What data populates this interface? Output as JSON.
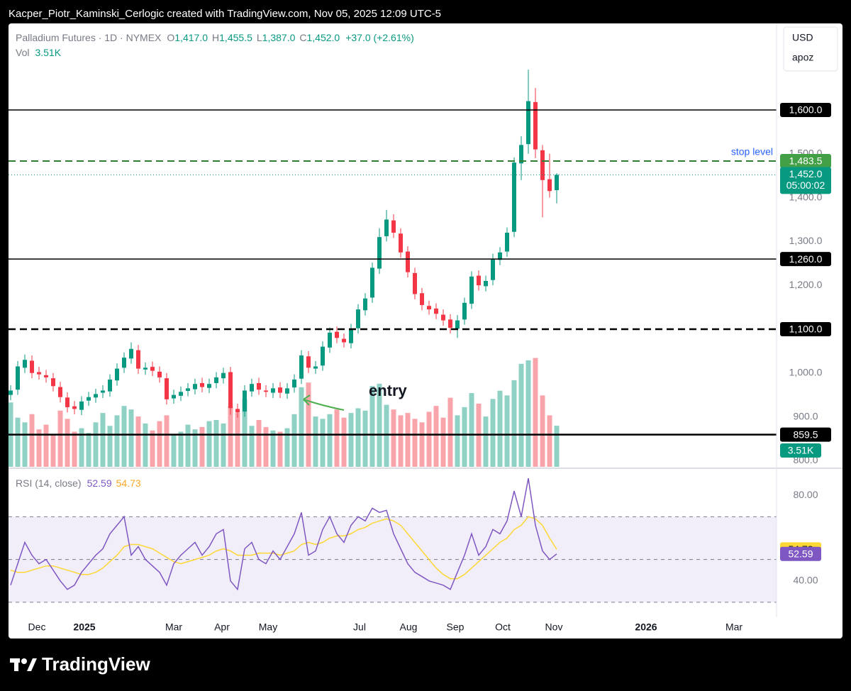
{
  "header": {
    "text": "Kacper_Piotr_Kaminski_Cerlogic created with TradingView.com, Nov 05, 2025 12:09 UTC-5"
  },
  "footer": {
    "logo": "TradingView"
  },
  "chart_data": {
    "type": "candlestick",
    "title": "Palladium Futures · 1D · NYMEX",
    "ohlc_legend": {
      "letters": [
        "O",
        "H",
        "L",
        "C"
      ],
      "values": [
        "1,417.0",
        "1,455.5",
        "1,387.0",
        "1,452.0"
      ],
      "change": "+37.0 (+2.61%)"
    },
    "currency": "USD",
    "scale_mode": "apoz",
    "up_color": "#089981",
    "down_color": "#f23645",
    "grid": false,
    "xlim": [
      -0.3,
      108
    ],
    "xticks": [
      {
        "value": 3.7,
        "label": "Dec"
      },
      {
        "value": 10.4,
        "label": "2025"
      },
      {
        "value": 23,
        "label": "Mar"
      },
      {
        "value": 29.8,
        "label": "Apr"
      },
      {
        "value": 36.3,
        "label": "May"
      },
      {
        "value": 49.2,
        "label": "Jul"
      },
      {
        "value": 56.1,
        "label": "Aug"
      },
      {
        "value": 62.7,
        "label": "Sep"
      },
      {
        "value": 69.4,
        "label": "Oct"
      },
      {
        "value": 76.6,
        "label": "Nov"
      },
      {
        "value": 89.6,
        "label": "2026"
      },
      {
        "value": 102,
        "label": "Mar"
      }
    ],
    "ylim": [
      786,
      1786
    ],
    "yticks": [
      {
        "value": 800,
        "label": "800.0"
      },
      {
        "value": 900,
        "label": "900.0"
      },
      {
        "value": 1000,
        "label": "1,000.0"
      },
      {
        "value": 1200,
        "label": "1,200.0"
      },
      {
        "value": 1300,
        "label": "1,300.0"
      },
      {
        "value": 1400,
        "label": "1,400.0"
      },
      {
        "value": 1500,
        "label": "1,500.0"
      }
    ],
    "open": [
      950,
      962,
      1012,
      1028,
      1002,
      995,
      988,
      968,
      944,
      924,
      916,
      937,
      944,
      955,
      958,
      983,
      1012,
      1033,
      1052,
      1008,
      1014,
      1003,
      988,
      942,
      948,
      959,
      963,
      977,
      966,
      977,
      988,
      1002,
      918,
      912,
      958,
      977,
      960,
      955,
      967,
      953,
      967,
      987,
      1038,
      1010,
      1017,
      1058,
      1094,
      1078,
      1068,
      1102,
      1143,
      1172,
      1238,
      1312,
      1348,
      1318,
      1277,
      1228,
      1182,
      1153,
      1147,
      1133,
      1122,
      1101,
      1122,
      1158,
      1222,
      1198,
      1212,
      1258,
      1277,
      1322,
      1478,
      1522,
      1618,
      1508,
      1442,
      1417
    ],
    "high": [
      972,
      1027,
      1042,
      1040,
      1014,
      1007,
      1000,
      980,
      956,
      936,
      947,
      957,
      964,
      972,
      997,
      1022,
      1047,
      1070,
      1064,
      1024,
      1026,
      1015,
      1000,
      962,
      969,
      977,
      987,
      989,
      987,
      1002,
      1012,
      1014,
      930,
      972,
      987,
      989,
      972,
      977,
      979,
      977,
      997,
      1052,
      1050,
      1027,
      1072,
      1104,
      1106,
      1090,
      1112,
      1157,
      1182,
      1252,
      1330,
      1372,
      1362,
      1330,
      1289,
      1240,
      1194,
      1165,
      1159,
      1145,
      1134,
      1132,
      1172,
      1232,
      1234,
      1222,
      1272,
      1287,
      1332,
      1492,
      1540,
      1692,
      1650,
      1520,
      1500,
      1455.5
    ],
    "low": [
      938,
      950,
      1000,
      988,
      985,
      978,
      958,
      933,
      910,
      906,
      904,
      925,
      932,
      943,
      946,
      971,
      1000,
      1021,
      998,
      996,
      993,
      978,
      928,
      930,
      936,
      947,
      951,
      956,
      954,
      965,
      976,
      905,
      898,
      900,
      946,
      950,
      945,
      943,
      943,
      941,
      955,
      975,
      1000,
      998,
      1005,
      1046,
      1068,
      1058,
      1056,
      1090,
      1131,
      1160,
      1226,
      1300,
      1308,
      1263,
      1218,
      1168,
      1143,
      1133,
      1123,
      1108,
      1090,
      1080,
      1110,
      1146,
      1188,
      1186,
      1200,
      1246,
      1265,
      1310,
      1440,
      1500,
      1490,
      1355,
      1400,
      1387
    ],
    "close": [
      960,
      1015,
      1030,
      1000,
      997,
      990,
      970,
      945,
      922,
      918,
      935,
      945,
      952,
      960,
      985,
      1010,
      1035,
      1055,
      1010,
      1012,
      1005,
      990,
      940,
      950,
      957,
      965,
      975,
      968,
      975,
      990,
      1000,
      920,
      910,
      960,
      975,
      962,
      957,
      965,
      955,
      965,
      985,
      1040,
      1012,
      1015,
      1060,
      1092,
      1080,
      1070,
      1100,
      1145,
      1170,
      1240,
      1310,
      1350,
      1320,
      1275,
      1230,
      1180,
      1155,
      1145,
      1135,
      1120,
      1103,
      1120,
      1160,
      1220,
      1200,
      1210,
      1260,
      1275,
      1320,
      1480,
      1520,
      1620,
      1510,
      1440,
      1415,
      1452
    ],
    "levels": [
      {
        "value": 1600,
        "label": "1,600.0",
        "style": "solid",
        "color": "#000000"
      },
      {
        "value": 1483.5,
        "label": "1,483.5",
        "style": "dashed",
        "color": "#2e7d32",
        "box_color": "#43a047",
        "annotation": "stop level",
        "annotation_color": "#2962ff"
      },
      {
        "value": 1260,
        "label": "1,260.0",
        "style": "solid",
        "color": "#000000"
      },
      {
        "value": 1100,
        "label": "1,100.0",
        "style": "dashed-bold",
        "color": "#000000"
      },
      {
        "value": 859.5,
        "label": "859.5",
        "style": "solid-bold",
        "color": "#000000"
      }
    ],
    "last_price": {
      "value": 1452,
      "label": "1,452.0",
      "countdown": "05:00:02",
      "color": "#089981"
    },
    "annotation": "entry",
    "volume": {
      "name": "Vol",
      "last_label": "3.51K",
      "ylim": [
        0,
        10
      ],
      "values": [
        5.5,
        4.2,
        3.8,
        4.5,
        3.2,
        3.6,
        2.8,
        4.8,
        4.1,
        3.0,
        3.3,
        2.9,
        3.8,
        4.6,
        3.5,
        4.4,
        5.2,
        4.9,
        4.3,
        3.7,
        3.1,
        3.9,
        4.4,
        2.8,
        3.0,
        3.6,
        3.2,
        3.4,
        3.9,
        4.0,
        3.7,
        5.2,
        4.6,
        5.8,
        3.5,
        4.0,
        3.4,
        3.1,
        3.0,
        3.3,
        4.5,
        6.8,
        7.2,
        4.3,
        4.1,
        4.5,
        4.9,
        4.2,
        4.6,
        5.0,
        4.8,
        6.9,
        7.1,
        5.3,
        4.9,
        4.4,
        4.6,
        4.1,
        3.8,
        4.7,
        5.2,
        4.2,
        5.9,
        4.4,
        5.1,
        6.3,
        5.4,
        4.3,
        5.8,
        6.5,
        6.1,
        7.4,
        8.8,
        9.1,
        9.3,
        6.1,
        4.4,
        3.51
      ]
    },
    "rsi": {
      "name": "RSI (14, close)",
      "color": "#7e57c2",
      "ma_color": "#fdd835",
      "ylim": [
        23,
        92
      ],
      "yticks": [
        {
          "value": 40,
          "label": "40.00"
        },
        {
          "value": 80,
          "label": "80.00"
        }
      ],
      "bands": [
        30,
        50,
        70
      ],
      "values": [
        38,
        48,
        58,
        52,
        48,
        50,
        45,
        40,
        36,
        38,
        44,
        48,
        52,
        55,
        62,
        66,
        70,
        52,
        56,
        50,
        47,
        44,
        38,
        48,
        52,
        55,
        58,
        52,
        56,
        62,
        64,
        40,
        36,
        55,
        58,
        50,
        48,
        54,
        50,
        56,
        62,
        72,
        52,
        54,
        64,
        70,
        62,
        58,
        66,
        70,
        68,
        74,
        72,
        73,
        62,
        55,
        48,
        44,
        42,
        40,
        39,
        38,
        36,
        44,
        52,
        62,
        52,
        56,
        64,
        62,
        68,
        82,
        70,
        88,
        66,
        54,
        50,
        52.59
      ],
      "ma": [
        45,
        44,
        44,
        45,
        46,
        47,
        47,
        46,
        45,
        44,
        43,
        43,
        44,
        46,
        49,
        52,
        56,
        57,
        57,
        56,
        55,
        53,
        51,
        49,
        48,
        49,
        50,
        51,
        52,
        54,
        55,
        54,
        52,
        52,
        52,
        53,
        53,
        53,
        52,
        53,
        54,
        57,
        58,
        57,
        58,
        60,
        61,
        61,
        62,
        64,
        65,
        67,
        68,
        69,
        68,
        66,
        62,
        58,
        54,
        50,
        46,
        43,
        41,
        41,
        43,
        46,
        49,
        52,
        55,
        58,
        60,
        64,
        66,
        70,
        69,
        66,
        60,
        54.73
      ]
    }
  }
}
